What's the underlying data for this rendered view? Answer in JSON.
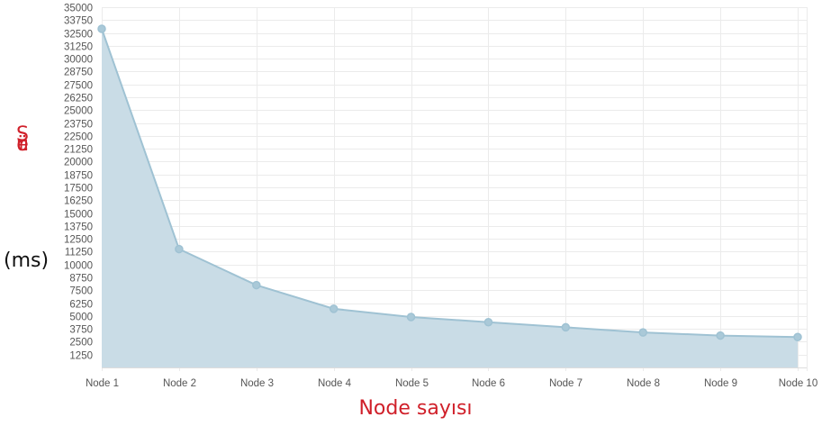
{
  "chart_data": {
    "type": "area",
    "categories": [
      "Node 1",
      "Node 2",
      "Node 3",
      "Node 4",
      "Node 5",
      "Node 6",
      "Node 7",
      "Node 8",
      "Node 9",
      "Node 10"
    ],
    "series": [
      {
        "values": [
          32900,
          11500,
          8000,
          5700,
          4900,
          4400,
          3900,
          3400,
          3100,
          2950
        ]
      }
    ],
    "yticks": [
      1250,
      2500,
      3750,
      5000,
      6250,
      7500,
      8750,
      10000,
      11250,
      12500,
      13750,
      15000,
      16250,
      17500,
      18750,
      20000,
      21250,
      22500,
      23750,
      25000,
      26250,
      27500,
      28750,
      30000,
      31250,
      32500,
      33750,
      35000
    ],
    "ylim": [
      0,
      35000
    ],
    "grid": true,
    "xlabel": "Node sayısı",
    "ylabel_letters": [
      "S",
      "ü",
      "r",
      "e"
    ],
    "ylabel_unit": "(ms)",
    "colors": {
      "fill": "#c9dce6",
      "line": "#9fc2d3",
      "point": "#aac9d8",
      "grid": "#ebebeb",
      "tick_text": "#555555",
      "label_red": "#d0202a",
      "label_black": "#111111"
    }
  }
}
